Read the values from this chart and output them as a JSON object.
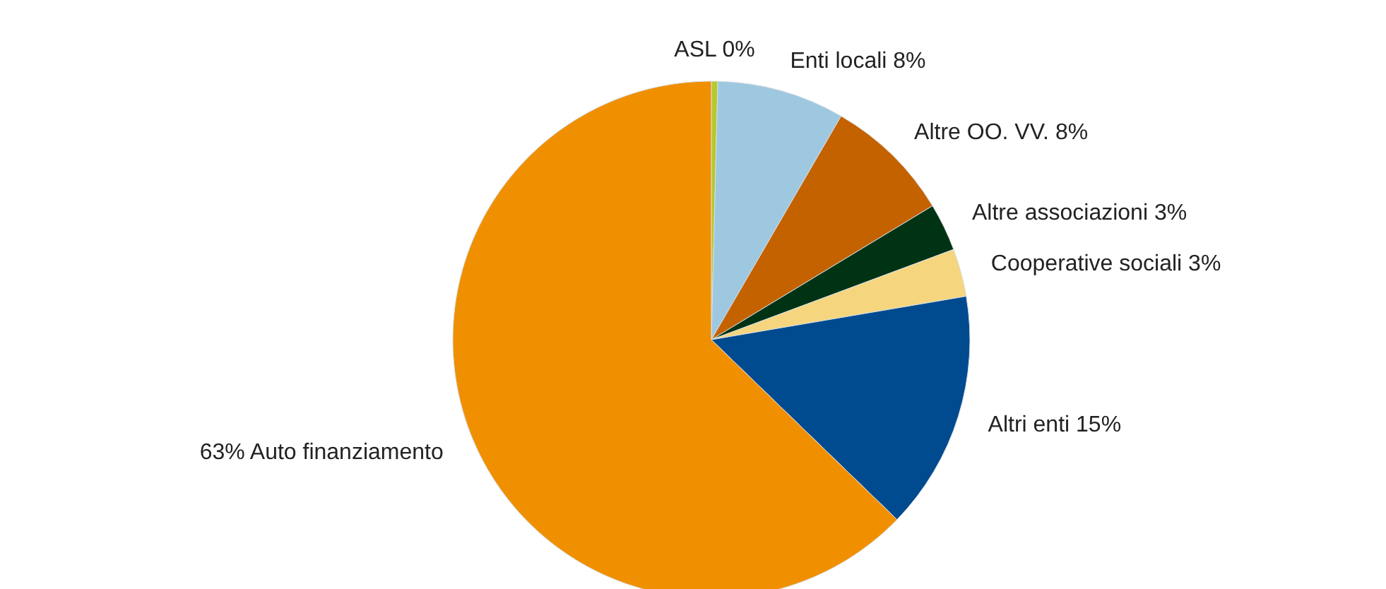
{
  "chart_data": {
    "type": "pie",
    "categories": [
      "ASL",
      "Enti locali",
      "Altre OO. VV.",
      "Altre associazioni",
      "Cooperative sociali",
      "Altri enti",
      "Auto finanziamento"
    ],
    "values": [
      0.4,
      8,
      8,
      3,
      3,
      15,
      63
    ],
    "value_labels": [
      "0%",
      "8%",
      "8%",
      "3%",
      "3%",
      "15%",
      "63%"
    ],
    "colors": [
      "#b5c92a",
      "#9ec8e0",
      "#c46200",
      "#003314",
      "#f5d67e",
      "#004a8f",
      "#f09000"
    ]
  }
}
